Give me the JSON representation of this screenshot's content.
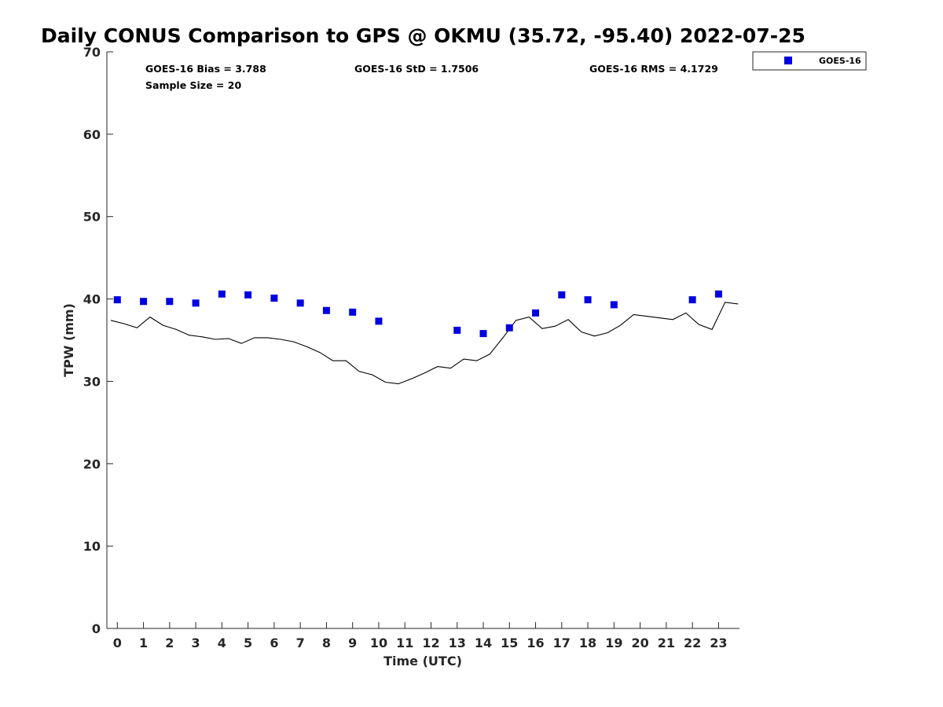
{
  "chart_data": {
    "type": "scatter",
    "title": "Daily CONUS Comparison to GPS @ OKMU (35.72, -95.40) 2022-07-25",
    "xlabel": "Time (UTC)",
    "ylabel": "TPW (mm)",
    "xlim": [
      -0.4,
      23.8
    ],
    "ylim": [
      0,
      70
    ],
    "x_ticks": [
      0,
      1,
      2,
      3,
      4,
      5,
      6,
      7,
      8,
      9,
      10,
      11,
      12,
      13,
      14,
      15,
      16,
      17,
      18,
      19,
      20,
      21,
      22,
      23
    ],
    "y_ticks": [
      0,
      10,
      20,
      30,
      40,
      50,
      60,
      70
    ],
    "legend_position": "top-right, outside plot",
    "grid": false,
    "stats": {
      "bias": "GOES-16 Bias = 3.788",
      "std": "GOES-16 StD = 1.7506",
      "rms": "GOES-16 RMS = 4.1729",
      "sample": "Sample Size = 20"
    },
    "series": [
      {
        "name": "GOES-16",
        "kind": "scatter",
        "marker": "square",
        "color": "#0000e0",
        "x": [
          0,
          1,
          2,
          3,
          4,
          5,
          6,
          7,
          8,
          9,
          10,
          13,
          14,
          15,
          16,
          17,
          18,
          19,
          22,
          23
        ],
        "y": [
          39.9,
          39.7,
          39.7,
          39.5,
          40.6,
          40.5,
          40.1,
          39.5,
          38.6,
          38.4,
          37.3,
          36.2,
          35.8,
          36.5,
          38.3,
          40.5,
          39.9,
          39.3,
          39.9,
          40.6
        ]
      },
      {
        "kind": "line",
        "color": "#000000",
        "x": [
          -0.25,
          0.25,
          0.75,
          1.25,
          1.75,
          2.25,
          2.75,
          3.25,
          3.75,
          4.25,
          4.75,
          5.25,
          5.75,
          6.25,
          6.75,
          7.25,
          7.75,
          8.25,
          8.75,
          9.25,
          9.75,
          10.25,
          10.75,
          11.25,
          11.75,
          12.25,
          12.75,
          13.25,
          13.75,
          14.25,
          14.75,
          15.25,
          15.75,
          16.25,
          16.75,
          17.25,
          17.75,
          18.25,
          18.75,
          19.25,
          19.75,
          20.25,
          20.75,
          21.25,
          21.75,
          22.25,
          22.75,
          23.25,
          23.75
        ],
        "y": [
          37.4,
          37.0,
          36.5,
          37.8,
          36.8,
          36.3,
          35.6,
          35.4,
          35.1,
          35.2,
          34.6,
          35.3,
          35.3,
          35.1,
          34.8,
          34.2,
          33.5,
          32.5,
          32.5,
          31.2,
          30.8,
          29.9,
          29.7,
          30.3,
          31.0,
          31.8,
          31.6,
          32.7,
          32.5,
          33.3,
          35.3,
          37.4,
          37.8,
          36.4,
          36.7,
          37.5,
          36.0,
          35.5,
          35.9,
          36.8,
          38.1,
          37.9,
          37.7,
          37.5,
          38.3,
          36.9,
          36.3,
          39.6,
          39.4
        ]
      }
    ]
  }
}
